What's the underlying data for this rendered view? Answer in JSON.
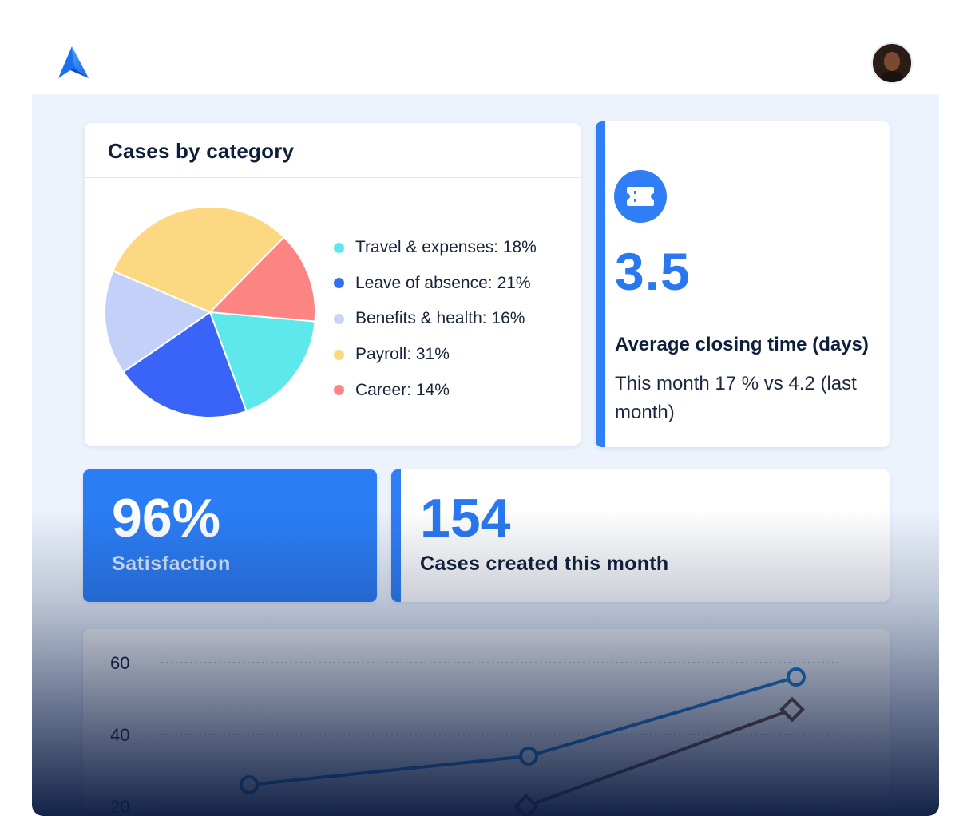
{
  "header": {
    "logo_icon": "brand-logo-icon",
    "avatar_icon": "user-avatar"
  },
  "category_card": {
    "title": "Cases by category",
    "chart_data": {
      "type": "pie",
      "title": "Cases by category",
      "categories": [
        "Travel & expenses",
        "Leave of absence",
        "Benefits & health",
        "Payroll",
        "Career"
      ],
      "values": [
        18,
        21,
        16,
        31,
        14
      ],
      "colors": [
        "#5ee8ec",
        "#3a63f8",
        "#c3d0f8",
        "#fdd882",
        "#fc8583"
      ],
      "legend_position": "right"
    },
    "legend": [
      {
        "label": "Travel & expenses: 18%",
        "color": "#5ee8ec"
      },
      {
        "label": "Leave of absence: 21%",
        "color": "#2f6ff0"
      },
      {
        "label": "Benefits & health: 16%",
        "color": "#c9d4f5"
      },
      {
        "label": "Payroll: 31%",
        "color": "#fdd882"
      },
      {
        "label": "Career: 14%",
        "color": "#fc8583"
      }
    ]
  },
  "closing_card": {
    "icon": "ticket-icon",
    "value": "3.5",
    "label": "Average closing time (days)",
    "note": "This month 17 % vs  4.2 (last month)"
  },
  "satisfaction_card": {
    "value": "96%",
    "label": "Satisfaction"
  },
  "cases_card": {
    "value": "154",
    "label": "Cases created this month"
  },
  "trend_chart": {
    "chart_data": {
      "type": "line",
      "y_ticks": [
        "60",
        "40",
        "20"
      ],
      "ylim": [
        20,
        60
      ],
      "grid": true,
      "series": [
        {
          "values": [
            26,
            34,
            56
          ],
          "marker": "circle",
          "color": "#1b7fd6"
        },
        {
          "values": [
            20,
            47
          ],
          "marker": "diamond",
          "color": "#6b4a36"
        }
      ]
    }
  }
}
